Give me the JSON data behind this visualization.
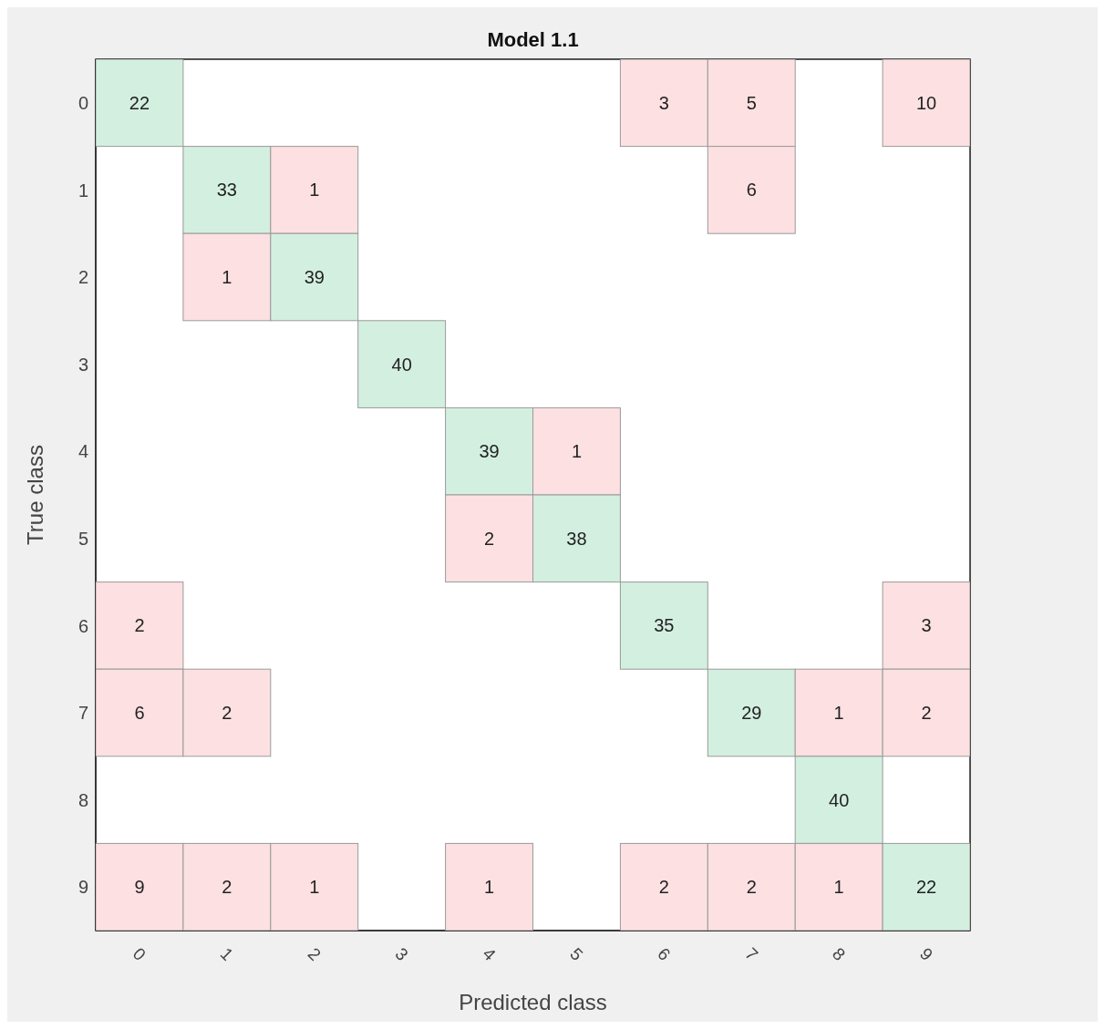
{
  "chart_data": {
    "type": "heatmap",
    "title": "Model 1.1",
    "xlabel": "Predicted class",
    "ylabel": "True class",
    "categories": [
      "0",
      "1",
      "2",
      "3",
      "4",
      "5",
      "6",
      "7",
      "8",
      "9"
    ],
    "y_categories": [
      "0",
      "1",
      "2",
      "3",
      "4",
      "5",
      "6",
      "7",
      "8",
      "9"
    ],
    "colors": [
      "#d3efe0",
      "#fde0e1"
    ],
    "data_labels": true,
    "cells": [
      [
        22,
        null,
        null,
        null,
        null,
        null,
        3,
        5,
        null,
        10
      ],
      [
        null,
        33,
        1,
        null,
        null,
        null,
        null,
        6,
        null,
        null
      ],
      [
        null,
        1,
        39,
        null,
        null,
        null,
        null,
        null,
        null,
        null
      ],
      [
        null,
        null,
        null,
        40,
        null,
        null,
        null,
        null,
        null,
        null
      ],
      [
        null,
        null,
        null,
        null,
        39,
        1,
        null,
        null,
        null,
        null
      ],
      [
        null,
        null,
        null,
        null,
        2,
        38,
        null,
        null,
        null,
        null
      ],
      [
        2,
        null,
        null,
        null,
        null,
        null,
        35,
        null,
        null,
        3
      ],
      [
        6,
        2,
        null,
        null,
        null,
        null,
        null,
        29,
        1,
        2
      ],
      [
        null,
        null,
        null,
        null,
        null,
        null,
        null,
        null,
        40,
        null
      ],
      [
        9,
        2,
        1,
        null,
        1,
        null,
        2,
        2,
        1,
        22
      ]
    ]
  }
}
